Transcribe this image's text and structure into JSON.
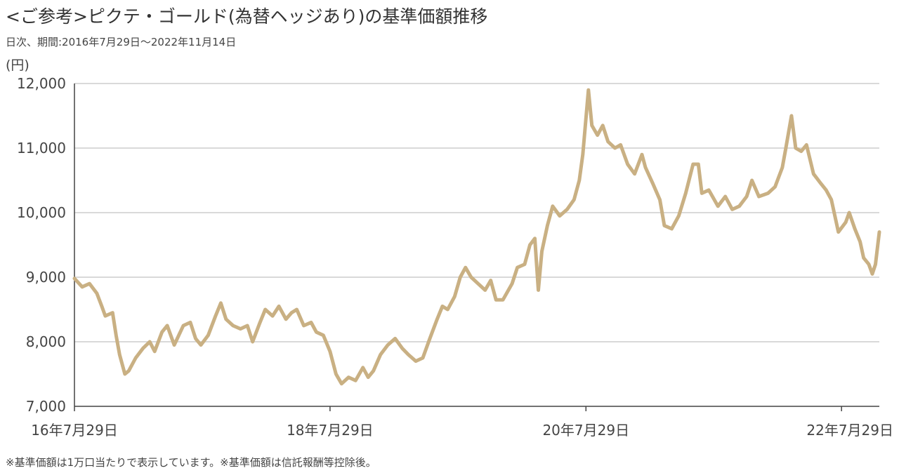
{
  "title": "<ご参考>ピクテ・ゴールド(為替ヘッジあり)の基準価額推移",
  "subtitle": "日次、期間:2016年7月29日～2022年11月14日",
  "unit_label": "(円)",
  "footnote": "※基準価額は1万口当たりで表示しています。※基準価額は信託報酬等控除後。",
  "colors": {
    "line": "#C9B083",
    "grid": "#D9D9D9",
    "axis": "#444444"
  },
  "chart_data": {
    "type": "line",
    "title": "<ご参考>ピクテ・ゴールド(為替ヘッジあり)の基準価額推移",
    "xlabel": "",
    "ylabel": "(円)",
    "ylim": [
      7000,
      12000
    ],
    "xlim": [
      "2016-07-29",
      "2022-11-14"
    ],
    "grid": true,
    "y_ticks": [
      7000,
      8000,
      9000,
      10000,
      11000,
      12000
    ],
    "y_tick_labels": [
      "7,000",
      "8,000",
      "9,000",
      "10,000",
      "11,000",
      "12,000"
    ],
    "x_ticks": [
      "2016-07-29",
      "2018-07-29",
      "2020-07-29",
      "2022-07-29"
    ],
    "x_tick_labels": [
      "16年7月29日",
      "18年7月29日",
      "20年7月29日",
      "22年7月29日"
    ],
    "series": [
      {
        "values": [
          [
            "2016-07-29",
            8980
          ],
          [
            "2016-08-20",
            8850
          ],
          [
            "2016-09-10",
            8900
          ],
          [
            "2016-10-01",
            8750
          ],
          [
            "2016-10-15",
            8550
          ],
          [
            "2016-10-25",
            8400
          ],
          [
            "2016-11-15",
            8450
          ],
          [
            "2016-11-25",
            8100
          ],
          [
            "2016-12-05",
            7800
          ],
          [
            "2016-12-20",
            7500
          ],
          [
            "2016-12-31",
            7550
          ],
          [
            "2017-01-20",
            7750
          ],
          [
            "2017-02-10",
            7900
          ],
          [
            "2017-03-01",
            8000
          ],
          [
            "2017-03-15",
            7850
          ],
          [
            "2017-04-05",
            8150
          ],
          [
            "2017-04-20",
            8250
          ],
          [
            "2017-05-10",
            7950
          ],
          [
            "2017-06-05",
            8250
          ],
          [
            "2017-06-25",
            8300
          ],
          [
            "2017-07-10",
            8050
          ],
          [
            "2017-07-25",
            7950
          ],
          [
            "2017-08-15",
            8100
          ],
          [
            "2017-09-05",
            8400
          ],
          [
            "2017-09-20",
            8600
          ],
          [
            "2017-10-05",
            8350
          ],
          [
            "2017-10-25",
            8250
          ],
          [
            "2017-11-15",
            8200
          ],
          [
            "2017-12-05",
            8250
          ],
          [
            "2017-12-20",
            8000
          ],
          [
            "2018-01-10",
            8300
          ],
          [
            "2018-01-25",
            8500
          ],
          [
            "2018-02-15",
            8400
          ],
          [
            "2018-03-05",
            8550
          ],
          [
            "2018-03-25",
            8350
          ],
          [
            "2018-04-10",
            8450
          ],
          [
            "2018-04-25",
            8500
          ],
          [
            "2018-05-15",
            8250
          ],
          [
            "2018-06-05",
            8300
          ],
          [
            "2018-06-20",
            8150
          ],
          [
            "2018-07-10",
            8100
          ],
          [
            "2018-07-29",
            7850
          ],
          [
            "2018-08-15",
            7500
          ],
          [
            "2018-08-31",
            7350
          ],
          [
            "2018-09-20",
            7450
          ],
          [
            "2018-10-10",
            7400
          ],
          [
            "2018-10-31",
            7600
          ],
          [
            "2018-11-15",
            7450
          ],
          [
            "2018-11-30",
            7550
          ],
          [
            "2018-12-20",
            7800
          ],
          [
            "2019-01-10",
            7950
          ],
          [
            "2019-01-31",
            8050
          ],
          [
            "2019-02-20",
            7900
          ],
          [
            "2019-03-10",
            7800
          ],
          [
            "2019-03-31",
            7700
          ],
          [
            "2019-04-20",
            7750
          ],
          [
            "2019-05-10",
            8050
          ],
          [
            "2019-05-31",
            8350
          ],
          [
            "2019-06-15",
            8550
          ],
          [
            "2019-06-30",
            8500
          ],
          [
            "2019-07-20",
            8700
          ],
          [
            "2019-08-05",
            9000
          ],
          [
            "2019-08-20",
            9150
          ],
          [
            "2019-09-05",
            9000
          ],
          [
            "2019-09-25",
            8900
          ],
          [
            "2019-10-15",
            8800
          ],
          [
            "2019-10-31",
            8950
          ],
          [
            "2019-11-15",
            8650
          ],
          [
            "2019-12-05",
            8650
          ],
          [
            "2019-12-31",
            8900
          ],
          [
            "2020-01-15",
            9150
          ],
          [
            "2020-02-05",
            9200
          ],
          [
            "2020-02-20",
            9500
          ],
          [
            "2020-03-05",
            9600
          ],
          [
            "2020-03-15",
            8800
          ],
          [
            "2020-03-25",
            9400
          ],
          [
            "2020-04-10",
            9800
          ],
          [
            "2020-04-25",
            10100
          ],
          [
            "2020-05-15",
            9950
          ],
          [
            "2020-06-05",
            10050
          ],
          [
            "2020-06-25",
            10200
          ],
          [
            "2020-07-10",
            10500
          ],
          [
            "2020-07-20",
            10900
          ],
          [
            "2020-08-05",
            11900
          ],
          [
            "2020-08-15",
            11350
          ],
          [
            "2020-08-31",
            11200
          ],
          [
            "2020-09-15",
            11350
          ],
          [
            "2020-09-30",
            11100
          ],
          [
            "2020-10-20",
            11000
          ],
          [
            "2020-11-05",
            11050
          ],
          [
            "2020-11-25",
            10750
          ],
          [
            "2020-12-15",
            10600
          ],
          [
            "2021-01-05",
            10900
          ],
          [
            "2021-01-15",
            10700
          ],
          [
            "2021-02-05",
            10450
          ],
          [
            "2021-02-25",
            10200
          ],
          [
            "2021-03-10",
            9800
          ],
          [
            "2021-03-31",
            9750
          ],
          [
            "2021-04-20",
            9950
          ],
          [
            "2021-05-10",
            10300
          ],
          [
            "2021-05-31",
            10750
          ],
          [
            "2021-06-15",
            10750
          ],
          [
            "2021-06-25",
            10300
          ],
          [
            "2021-07-15",
            10350
          ],
          [
            "2021-08-10",
            10100
          ],
          [
            "2021-08-31",
            10250
          ],
          [
            "2021-09-20",
            10050
          ],
          [
            "2021-10-10",
            10100
          ],
          [
            "2021-10-31",
            10250
          ],
          [
            "2021-11-15",
            10500
          ],
          [
            "2021-12-05",
            10250
          ],
          [
            "2021-12-31",
            10300
          ],
          [
            "2022-01-20",
            10400
          ],
          [
            "2022-02-10",
            10700
          ],
          [
            "2022-02-20",
            11000
          ],
          [
            "2022-03-08",
            11500
          ],
          [
            "2022-03-20",
            11000
          ],
          [
            "2022-04-05",
            10950
          ],
          [
            "2022-04-20",
            11050
          ],
          [
            "2022-05-10",
            10600
          ],
          [
            "2022-05-31",
            10450
          ],
          [
            "2022-06-15",
            10350
          ],
          [
            "2022-06-30",
            10200
          ],
          [
            "2022-07-20",
            9700
          ],
          [
            "2022-08-10",
            9850
          ],
          [
            "2022-08-20",
            10000
          ],
          [
            "2022-09-05",
            9750
          ],
          [
            "2022-09-20",
            9550
          ],
          [
            "2022-09-30",
            9300
          ],
          [
            "2022-10-15",
            9200
          ],
          [
            "2022-10-25",
            9050
          ],
          [
            "2022-11-03",
            9200
          ],
          [
            "2022-11-14",
            9700
          ]
        ]
      }
    ]
  }
}
